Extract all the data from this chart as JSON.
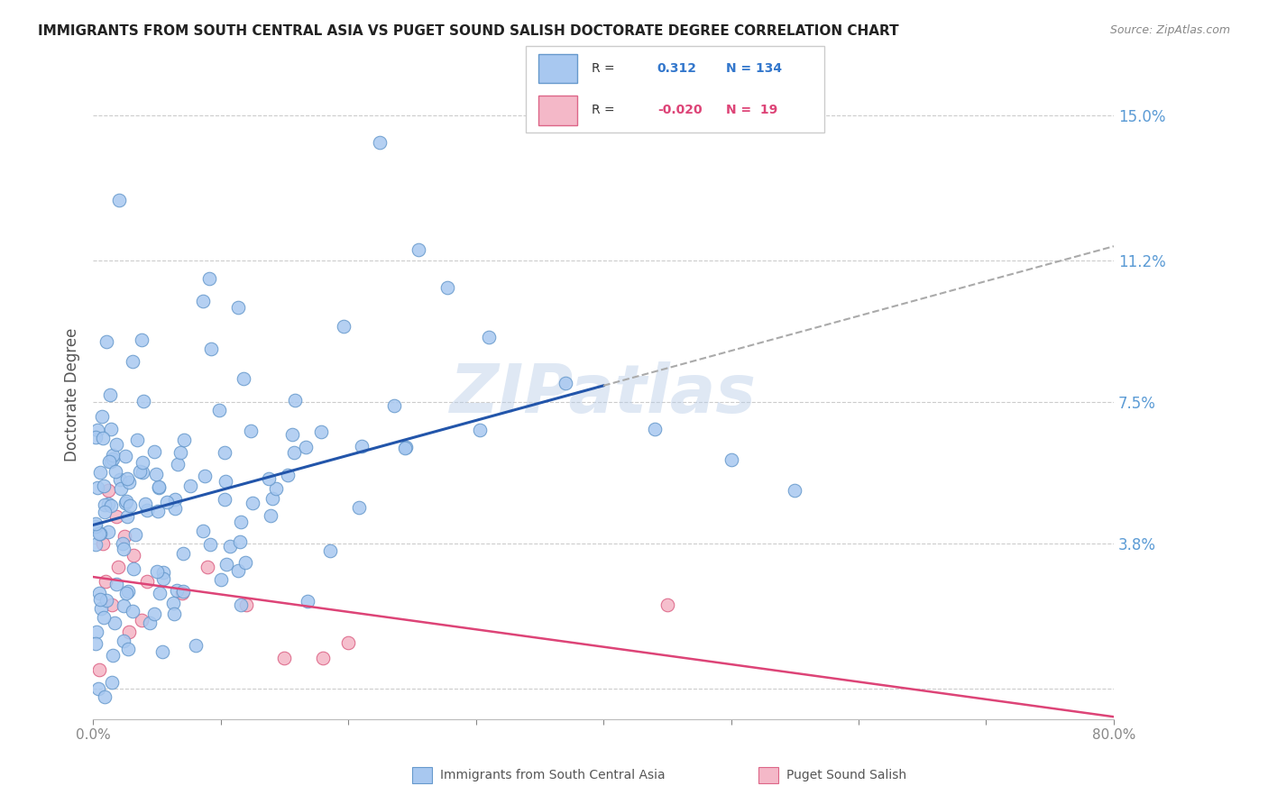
{
  "title": "IMMIGRANTS FROM SOUTH CENTRAL ASIA VS PUGET SOUND SALISH DOCTORATE DEGREE CORRELATION CHART",
  "source": "Source: ZipAtlas.com",
  "ylabel": "Doctorate Degree",
  "xlim": [
    0.0,
    0.8
  ],
  "ylim": [
    -0.008,
    0.162
  ],
  "ytick_values": [
    0.0,
    0.038,
    0.075,
    0.112,
    0.15
  ],
  "ytick_labels": [
    "",
    "3.8%",
    "7.5%",
    "11.2%",
    "15.0%"
  ],
  "xtick_values": [
    0.0,
    0.1,
    0.2,
    0.3,
    0.4,
    0.5,
    0.6,
    0.7,
    0.8
  ],
  "xtick_labels": [
    "0.0%",
    "",
    "",
    "",
    "",
    "",
    "",
    "",
    "80.0%"
  ],
  "blue_R": 0.312,
  "blue_N": 134,
  "pink_R": -0.02,
  "pink_N": 19,
  "blue_color": "#a8c8f0",
  "blue_edge_color": "#6699cc",
  "pink_color": "#f4b8c8",
  "pink_edge_color": "#dd6688",
  "blue_line_color": "#2255aa",
  "pink_line_color": "#dd4477",
  "dash_color": "#aaaaaa",
  "watermark": "ZIPatlas",
  "legend_blue_label": "Immigrants from South Central Asia",
  "legend_pink_label": "Puget Sound Salish",
  "background_color": "#ffffff",
  "grid_color": "#cccccc",
  "title_color": "#222222",
  "source_color": "#888888",
  "ylabel_color": "#555555",
  "ytick_color": "#5b9bd5",
  "xtick_color": "#555555"
}
